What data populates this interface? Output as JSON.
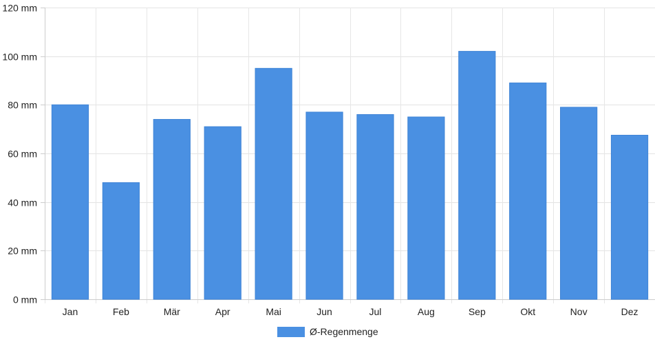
{
  "chart_data": {
    "type": "bar",
    "categories": [
      "Jan",
      "Feb",
      "Mär",
      "Apr",
      "Mai",
      "Jun",
      "Jul",
      "Aug",
      "Sep",
      "Okt",
      "Nov",
      "Dez"
    ],
    "series": [
      {
        "name": "Ø-Regenmenge",
        "values": [
          80,
          48,
          74,
          71,
          95,
          77,
          76,
          75,
          102,
          89,
          79,
          67.5
        ],
        "color": "#4a90e2"
      }
    ],
    "y_ticks": [
      "0 mm",
      "20 mm",
      "40 mm",
      "60 mm",
      "80 mm",
      "100 mm",
      "120 mm"
    ],
    "ylim": [
      0,
      120
    ],
    "y_step": 20,
    "grid": true,
    "legend_position": "bottom-center",
    "title": "",
    "xlabel": "",
    "ylabel": ""
  }
}
